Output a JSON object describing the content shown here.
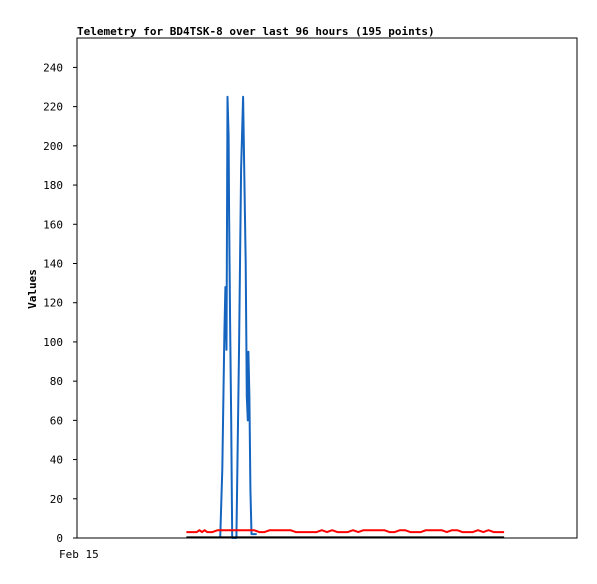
{
  "chart_data": {
    "type": "line",
    "title": "Telemetry for BD4TSK-8 over last 96 hours (195 points)",
    "xlabel": "",
    "ylabel": "Values",
    "x_tick_labels": [
      "Feb 15"
    ],
    "xlim": [
      0,
      96
    ],
    "ylim": [
      0,
      255
    ],
    "y_ticks": [
      0,
      20,
      40,
      60,
      80,
      100,
      120,
      140,
      160,
      180,
      200,
      220,
      240
    ],
    "grid": false,
    "legend": "none",
    "colors": {
      "blue_series": "#1565c0",
      "red_series": "#ff0000",
      "black_series": "#000000",
      "axis": "#000000",
      "background": "#ffffff"
    },
    "series": [
      {
        "color": "#1565c0",
        "x": [
          27.5,
          27.9,
          28.3,
          28.5,
          28.7,
          28.9,
          29.1,
          29.2,
          29.4,
          29.6,
          29.8,
          30.1,
          30.6,
          31.1,
          31.5,
          31.9,
          32.4,
          32.6,
          32.8,
          32.9,
          33.1,
          33.3,
          33.5,
          33.7,
          33.9,
          34.1,
          34.3,
          34.5
        ],
        "y": [
          0,
          35,
          105,
          128,
          96,
          225,
          205,
          165,
          110,
          60,
          0,
          0,
          0,
          95,
          188,
          225,
          140,
          72,
          60,
          95,
          72,
          25,
          2,
          2,
          2,
          2,
          2,
          2
        ]
      },
      {
        "color": "#ff0000",
        "x": [
          21,
          22,
          23,
          23.5,
          24,
          24.5,
          25,
          26,
          27,
          28,
          29,
          30,
          31,
          32,
          33,
          34,
          35,
          36,
          37,
          38,
          39,
          40,
          41,
          42,
          43,
          44,
          45,
          46,
          47,
          48,
          49,
          50,
          51,
          52,
          53,
          54,
          55,
          56,
          57,
          58,
          59,
          60,
          61,
          62,
          63,
          64,
          65,
          66,
          67,
          68,
          69,
          70,
          71,
          72,
          73,
          74,
          75,
          76,
          77,
          78,
          79,
          80,
          81,
          82
        ],
        "y": [
          3,
          3,
          3,
          4,
          3,
          4,
          3,
          3,
          4,
          4,
          4,
          4,
          4,
          4,
          4,
          4,
          3,
          3,
          4,
          4,
          4,
          4,
          4,
          3,
          3,
          3,
          3,
          3,
          4,
          3,
          4,
          3,
          3,
          3,
          4,
          3,
          4,
          4,
          4,
          4,
          4,
          3,
          3,
          4,
          4,
          3,
          3,
          3,
          4,
          4,
          4,
          4,
          3,
          4,
          4,
          3,
          3,
          3,
          4,
          3,
          4,
          3,
          3,
          3
        ]
      },
      {
        "color": "#000000",
        "x": [
          21,
          82
        ],
        "y": [
          0.3,
          0.3
        ]
      }
    ]
  }
}
